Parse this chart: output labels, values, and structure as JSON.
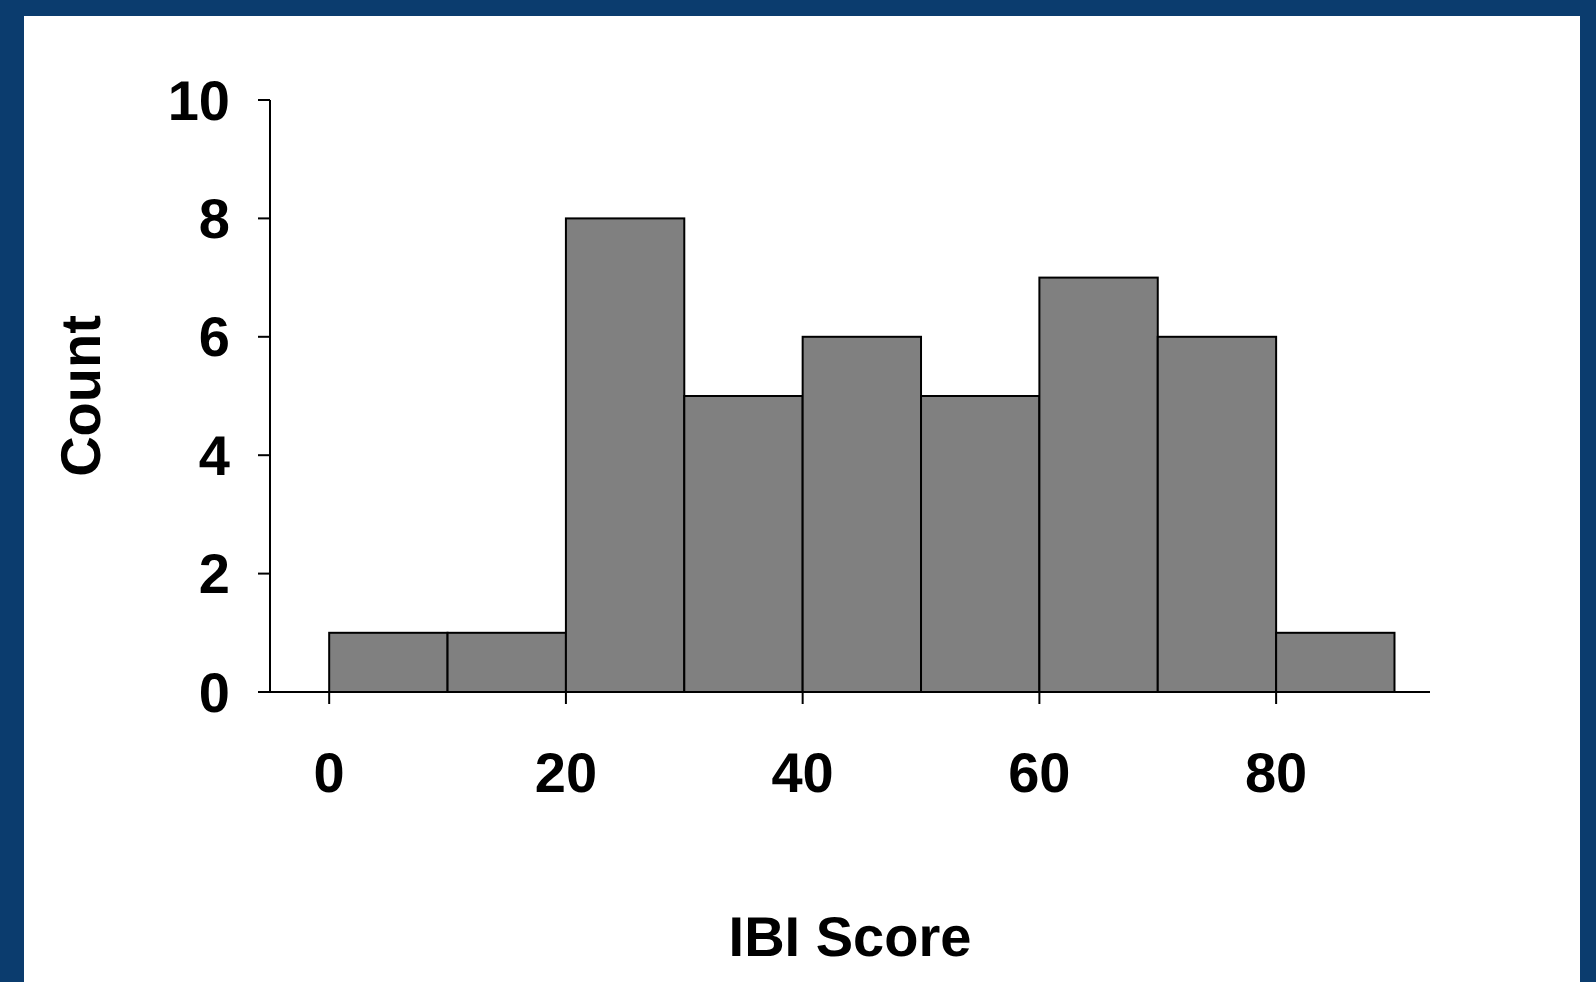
{
  "chart_data": {
    "type": "histogram",
    "xlabel": "IBI Score",
    "ylabel": "Count",
    "bins": [
      0,
      10,
      20,
      30,
      40,
      50,
      60,
      70,
      80,
      90
    ],
    "values": [
      1,
      1,
      8,
      5,
      6,
      5,
      7,
      6,
      1
    ],
    "color": "#808080",
    "xlim": [
      -5,
      93
    ],
    "xticks": [
      0,
      20,
      40,
      60,
      80
    ],
    "ylim": [
      0,
      10
    ],
    "yticks": [
      0,
      2,
      4,
      6,
      8,
      10
    ],
    "grid": false
  }
}
